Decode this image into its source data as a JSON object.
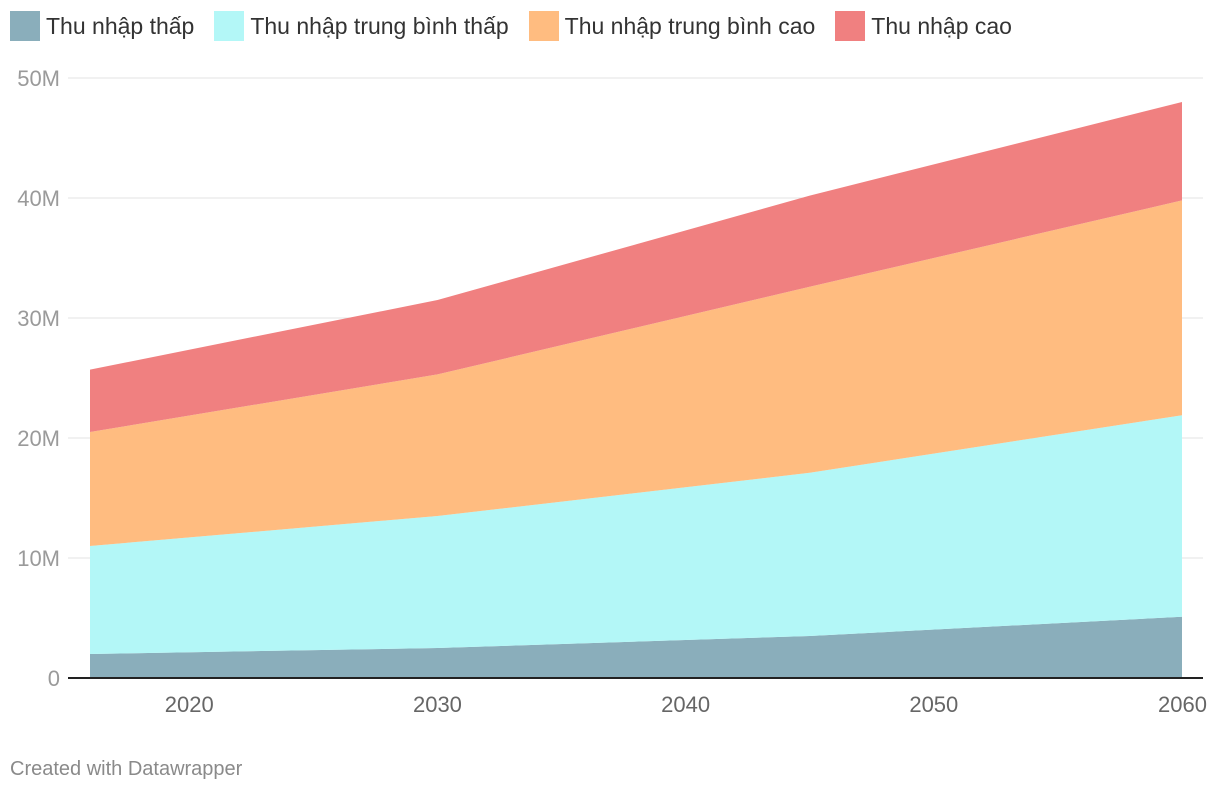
{
  "chart_data": {
    "type": "area",
    "stacked": true,
    "x": [
      2016,
      2030,
      2045,
      2060
    ],
    "series": [
      {
        "name": "Thu nhập thấp",
        "color": "#8aaebb",
        "values": [
          2.0,
          2.5,
          3.5,
          5.1
        ]
      },
      {
        "name": "Thu nhập trung bình thấp",
        "color": "#b3f7f7",
        "values": [
          9.0,
          11.0,
          13.6,
          16.8
        ]
      },
      {
        "name": "Thu nhập trung bình cao",
        "color": "#ffbc80",
        "values": [
          9.5,
          11.8,
          15.5,
          17.9
        ]
      },
      {
        "name": "Thu nhập cao",
        "color": "#f08080",
        "values": [
          5.2,
          6.2,
          7.6,
          8.2
        ]
      }
    ],
    "ylim": [
      0,
      50
    ],
    "y_ticks": [
      0,
      10,
      20,
      30,
      40,
      50
    ],
    "y_tick_labels": [
      "0",
      "10M",
      "20M",
      "30M",
      "40M",
      "50M"
    ],
    "xlim": [
      2016,
      2060
    ],
    "x_ticks": [
      2020,
      2030,
      2040,
      2050,
      2060
    ],
    "x_tick_labels": [
      "2020",
      "2030",
      "2040",
      "2050",
      "2060"
    ],
    "grid": true,
    "legend_position": "top-left"
  },
  "credit": "Created with Datawrapper"
}
